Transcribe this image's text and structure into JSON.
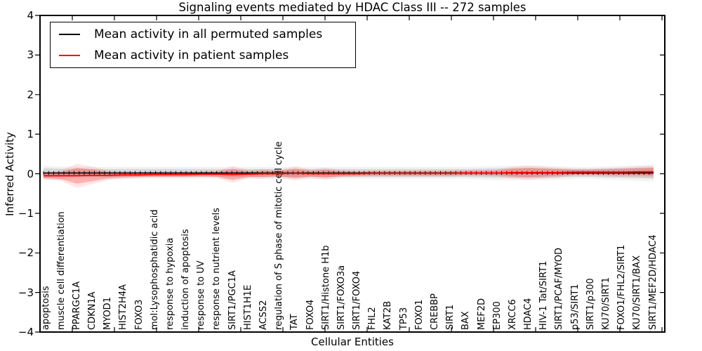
{
  "title": "Signaling events mediated by HDAC Class III -- 272 samples",
  "axes": {
    "xlabel": "Cellular Entities",
    "ylabel": "Inferred Activity",
    "yticks": [
      {
        "label": "4",
        "value": 4
      },
      {
        "label": "3",
        "value": 3
      },
      {
        "label": "2",
        "value": 2
      },
      {
        "label": "1",
        "value": 1
      },
      {
        "label": "0",
        "value": 0
      },
      {
        "label": "−1",
        "value": -1
      },
      {
        "label": "−2",
        "value": -2
      },
      {
        "label": "−3",
        "value": -3
      },
      {
        "label": "−4",
        "value": -4
      }
    ]
  },
  "legend": {
    "entries": [
      {
        "label": "Mean activity in all permuted samples",
        "color": "#000000"
      },
      {
        "label": "Mean activity in patient samples",
        "color": "#ff0000"
      }
    ],
    "position": "upper left"
  },
  "chart_data": {
    "type": "line",
    "title": "Signaling events mediated by HDAC Class III -- 272 samples",
    "xlabel": "Cellular Entities",
    "ylabel": "Inferred Activity",
    "ylim": [
      -4,
      4
    ],
    "grid": false,
    "legend_position": "upper left",
    "categories": [
      "apoptosis",
      "muscle cell differentiation",
      "PPARGC1A",
      "CDKN1A",
      "MYOD1",
      "HIST2H4A",
      "FOXO3",
      "mol:Lysophosphatidic acid",
      "response to hypoxia",
      "induction of apoptosis",
      "response to UV",
      "response to nutrient levels",
      "SIRT1/PGC1A",
      "HIST1H1E",
      "ACSS2",
      "regulation of S phase of mitotic cell cycle",
      "TAT",
      "FOXO4",
      "SIRT1/Histone H1b",
      "SIRT1/FOXO3a",
      "SIRT1/FOXO4",
      "FHL2",
      "KAT2B",
      "TP53",
      "FOXO1",
      "CREBBP",
      "SIRT1",
      "BAX",
      "MEF2D",
      "EP300",
      "XRCC6",
      "HDAC4",
      "HIV-1 Tat/SIRT1",
      "SIRT1/PCAF/MYOD",
      "p53/SIRT1",
      "SIRT1/p300",
      "KU70/SIRT1",
      "FOXO1/FHL2/SIRT1",
      "KU70/SIRT1/BAX",
      "SIRT1/MEF2D/HDAC4"
    ],
    "series": [
      {
        "name": "Mean activity in all permuted samples",
        "color": "#000000",
        "band_color": "#000000",
        "marker": "tick",
        "values": [
          0.02,
          0.02,
          0.02,
          0.02,
          0.02,
          0.02,
          0.02,
          0.02,
          0.02,
          0.02,
          0.02,
          0.02,
          0.02,
          0.02,
          0.02,
          0.02,
          0.02,
          0.02,
          0.02,
          0.02,
          0.02,
          0.02,
          0.02,
          0.02,
          0.02,
          0.02,
          0.02,
          0.02,
          0.02,
          0.02,
          0.02,
          0.02,
          0.02,
          0.02,
          0.02,
          0.02,
          0.02,
          0.02,
          0.02,
          0.02
        ],
        "std": [
          0.12,
          0.11,
          0.1,
          0.1,
          0.1,
          0.1,
          0.1,
          0.1,
          0.1,
          0.1,
          0.1,
          0.1,
          0.1,
          0.1,
          0.1,
          0.1,
          0.1,
          0.1,
          0.1,
          0.1,
          0.1,
          0.1,
          0.1,
          0.1,
          0.1,
          0.1,
          0.1,
          0.1,
          0.11,
          0.12,
          0.12,
          0.12,
          0.12,
          0.11,
          0.1,
          0.1,
          0.11,
          0.12,
          0.13,
          0.14
        ]
      },
      {
        "name": "Mean activity in patient samples",
        "color": "#ff0000",
        "band_color": "#ff0000",
        "marker": "none",
        "values": [
          -0.05,
          -0.05,
          -0.05,
          -0.04,
          -0.04,
          -0.03,
          -0.03,
          -0.02,
          -0.02,
          -0.02,
          -0.01,
          -0.01,
          -0.02,
          -0.01,
          0.0,
          0.0,
          0.01,
          0.0,
          0.0,
          0.0,
          0.0,
          0.01,
          0.01,
          0.01,
          0.01,
          0.01,
          0.01,
          0.02,
          0.02,
          0.02,
          0.03,
          0.03,
          0.03,
          0.03,
          0.04,
          0.04,
          0.04,
          0.04,
          0.05,
          0.05
        ],
        "std": [
          0.06,
          0.09,
          0.2,
          0.15,
          0.08,
          0.06,
          0.05,
          0.05,
          0.05,
          0.05,
          0.05,
          0.06,
          0.14,
          0.07,
          0.08,
          0.06,
          0.12,
          0.07,
          0.1,
          0.06,
          0.05,
          0.05,
          0.05,
          0.05,
          0.05,
          0.05,
          0.05,
          0.05,
          0.05,
          0.06,
          0.1,
          0.12,
          0.1,
          0.08,
          0.06,
          0.06,
          0.07,
          0.08,
          0.09,
          0.1
        ]
      }
    ]
  }
}
